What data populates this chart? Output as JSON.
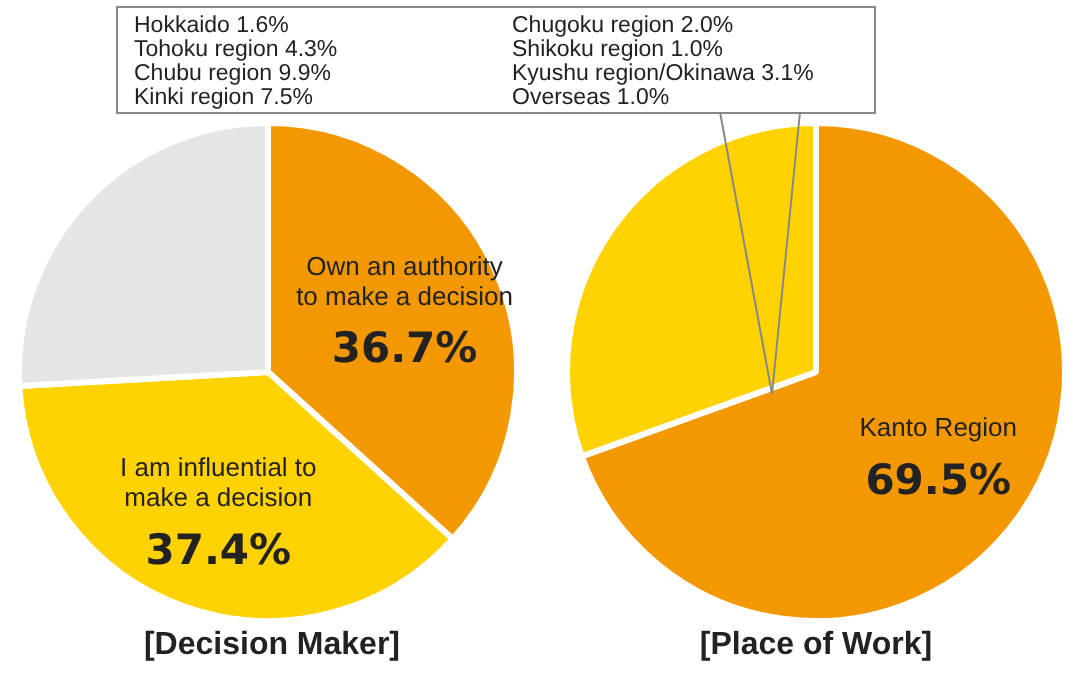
{
  "chart_data": [
    {
      "type": "pie",
      "title": "[Decision Maker]",
      "categories": [
        "Own an authority to make a decision",
        "I am influential to make a decision",
        null
      ],
      "values": [
        36.7,
        37.4,
        25.9
      ],
      "colors": [
        "#f39800",
        "#ffd200",
        "#e5e5e5"
      ],
      "value_labels": [
        "36.7%",
        "37.4%",
        null
      ],
      "legend": false
    },
    {
      "type": "pie",
      "title": "[Place of Work]",
      "categories": [
        "Kanto Region",
        null
      ],
      "values": [
        69.5,
        30.5
      ],
      "colors": [
        "#f39800",
        "#ffd200"
      ],
      "value_labels": [
        "69.5%",
        null
      ],
      "legend": false,
      "annotations": [
        "Hokkaido 1.6%",
        "Chugoku region 2.0%",
        "Tohoku region 4.3%",
        "Shikoku region 1.0%",
        "Chubu region 9.9%",
        "Kyushu region/Okinawa 3.1%",
        "Kinki region 7.5%",
        "Overseas 1.0%"
      ]
    }
  ]
}
